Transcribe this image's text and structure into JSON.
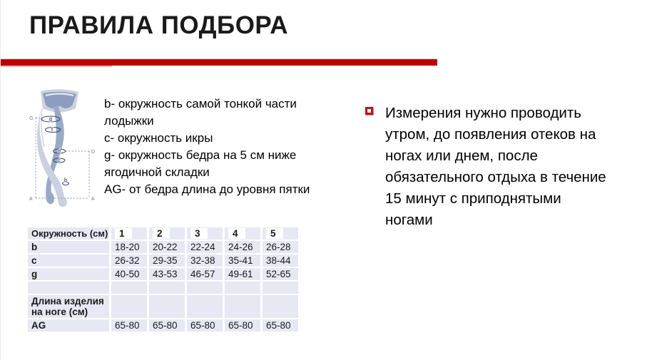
{
  "slide": {
    "title": "ПРАВИЛА ПОДБОРА",
    "accent_color": "#c00000",
    "table_cell_color": "#e6e9f3"
  },
  "diagram": {
    "corners": {
      "top_left": "G",
      "right": "D",
      "bottom_left": "A",
      "bottom_right": "A"
    },
    "bands": [
      "g",
      "f",
      "d",
      "c",
      "b"
    ]
  },
  "measurements": {
    "lines": [
      "b- окружность самой тонкой части лодыжки",
      "c- окружность икры",
      "g- окружность бедра на 5 см ниже ягодичной складки",
      "AG- от бедра длина до уровня пятки"
    ]
  },
  "note": {
    "text": "Измерения нужно проводить утром, до появления отеков на ногах или днем, после обязательного отдыха в течение 15 минут с приподнятыми ногами"
  },
  "size_table": {
    "header": {
      "label": "Окружность (см)",
      "sizes": [
        "1",
        "2",
        "3",
        "4",
        "5"
      ]
    },
    "rows": [
      {
        "label": "b",
        "values": [
          "18-20",
          "20-22",
          "22-24",
          "24-26",
          "26-28"
        ]
      },
      {
        "label": "c",
        "values": [
          "26-32",
          "29-35",
          "32-38",
          "35-41",
          "38-44"
        ]
      },
      {
        "label": "g",
        "values": [
          "40-50",
          "43-53",
          "46-57",
          "49-61",
          "52-65"
        ]
      },
      {
        "label": "",
        "values": [
          "",
          "",
          "",
          "",
          ""
        ]
      },
      {
        "label": "Длина изделия на ноге (см)",
        "values": [
          "",
          "",
          "",
          "",
          ""
        ]
      },
      {
        "label": "AG",
        "values": [
          "65-80",
          "65-80",
          "65-80",
          "65-80",
          "65-80"
        ]
      }
    ]
  }
}
